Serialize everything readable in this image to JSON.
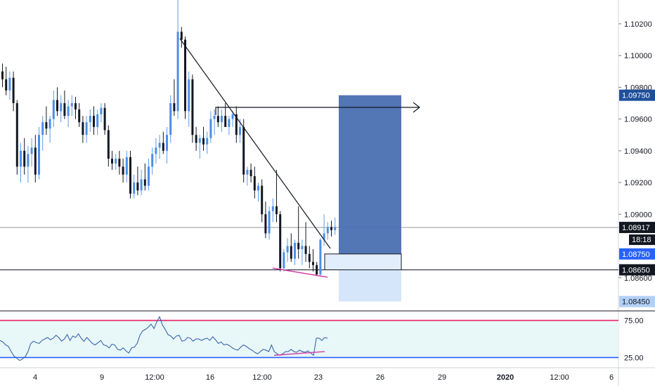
{
  "chart_data": [
    {
      "type": "candlestick",
      "series": [
        {
          "name": "",
          "values": []
        }
      ],
      "ylim": [
        1.084,
        1.1035
      ],
      "y_ticks": [
        "1.10200",
        "1.10000",
        "1.09800",
        "1.09600",
        "1.09400",
        "1.09200",
        "1.09000",
        "1.08600"
      ],
      "x_ticks": [
        "4",
        "9",
        "12:00",
        "16",
        "12:00",
        "23",
        "26",
        "29",
        "2020",
        "12:00",
        "6"
      ],
      "candles": [
        [
          1.099,
          1.0995,
          1.098,
          1.0985
        ],
        [
          1.0985,
          1.0993,
          1.0975,
          1.0978
        ],
        [
          1.0978,
          1.099,
          1.0972,
          1.0986
        ],
        [
          1.0986,
          1.099,
          1.0965,
          1.097
        ],
        [
          1.097,
          1.0972,
          1.0925,
          1.093
        ],
        [
          1.093,
          1.0945,
          1.092,
          1.094
        ],
        [
          1.094,
          1.0948,
          1.0925,
          1.093
        ],
        [
          1.093,
          1.0943,
          1.092,
          1.0938
        ],
        [
          1.0938,
          1.0948,
          1.093,
          1.0942
        ],
        [
          1.0942,
          1.095,
          1.092,
          1.0925
        ],
        [
          1.0925,
          1.0955,
          1.0922,
          1.095
        ],
        [
          1.095,
          1.0962,
          1.094,
          1.0958
        ],
        [
          1.0958,
          1.0968,
          1.095,
          1.0954
        ],
        [
          1.0954,
          1.0962,
          1.0945,
          1.096
        ],
        [
          1.096,
          1.0978,
          1.0955,
          1.0972
        ],
        [
          1.0972,
          1.098,
          1.0962,
          1.0965
        ],
        [
          1.0965,
          1.0975,
          1.0958,
          1.097
        ],
        [
          1.097,
          1.0978,
          1.096,
          1.0962
        ],
        [
          1.0962,
          1.0972,
          1.0955,
          1.0968
        ],
        [
          1.0968,
          1.0975,
          1.0962,
          1.097
        ],
        [
          1.097,
          1.0974,
          1.096,
          1.0966
        ],
        [
          1.0966,
          1.097,
          1.0955,
          1.0958
        ],
        [
          1.0958,
          1.0962,
          1.0945,
          1.095
        ],
        [
          1.095,
          1.0962,
          1.0945,
          1.0958
        ],
        [
          1.0958,
          1.0966,
          1.0952,
          1.0962
        ],
        [
          1.0962,
          1.0968,
          1.095,
          1.0955
        ],
        [
          1.0955,
          1.0966,
          1.095,
          1.0963
        ],
        [
          1.0963,
          1.097,
          1.0958,
          1.0967
        ],
        [
          1.0967,
          1.097,
          1.095,
          1.0953
        ],
        [
          1.0953,
          1.0956,
          1.093,
          1.0935
        ],
        [
          1.0935,
          1.094,
          1.0928,
          1.0932
        ],
        [
          1.0932,
          1.0938,
          1.0928,
          1.0935
        ],
        [
          1.0935,
          1.094,
          1.0925,
          1.093
        ],
        [
          1.093,
          1.0935,
          1.092,
          1.0925
        ],
        [
          1.0925,
          1.094,
          1.092,
          1.0936
        ],
        [
          1.0936,
          1.094,
          1.091,
          1.0913
        ],
        [
          1.0913,
          1.0925,
          1.091,
          1.092
        ],
        [
          1.092,
          1.093,
          1.0912,
          1.0915
        ],
        [
          1.0915,
          1.0928,
          1.0912,
          1.0922
        ],
        [
          1.0922,
          1.0932,
          1.0915,
          1.0918
        ],
        [
          1.0918,
          1.0935,
          1.0915,
          1.093
        ],
        [
          1.093,
          1.0942,
          1.0925,
          1.0938
        ],
        [
          1.0938,
          1.0948,
          1.0932,
          1.0942
        ],
        [
          1.0942,
          1.095,
          1.0935,
          1.0945
        ],
        [
          1.0945,
          1.0952,
          1.0938,
          1.094
        ],
        [
          1.094,
          1.0955,
          1.0932,
          1.095
        ],
        [
          1.095,
          1.0975,
          1.0945,
          1.097
        ],
        [
          1.097,
          1.0985,
          1.0962,
          1.0965
        ],
        [
          1.0965,
          1.1035,
          1.096,
          1.1015
        ],
        [
          1.1015,
          1.1018,
          1.1005,
          1.101
        ],
        [
          1.101,
          1.1012,
          1.096,
          1.0965
        ],
        [
          1.0965,
          1.099,
          1.0955,
          1.0985
        ],
        [
          1.0985,
          1.0988,
          1.0945,
          1.095
        ],
        [
          1.095,
          1.0955,
          1.094,
          1.0945
        ],
        [
          1.0945,
          1.095,
          1.0935,
          1.0948
        ],
        [
          1.0948,
          1.0955,
          1.094,
          1.0944
        ],
        [
          1.0944,
          1.0952,
          1.0938,
          1.0948
        ],
        [
          1.0948,
          1.0965,
          1.0945,
          1.096
        ],
        [
          1.096,
          1.0966,
          1.095,
          1.0962
        ],
        [
          1.0962,
          1.0968,
          1.0955,
          1.0958
        ],
        [
          1.0958,
          1.0966,
          1.0952,
          1.0962
        ],
        [
          1.0962,
          1.097,
          1.0955,
          1.0955
        ],
        [
          1.0955,
          1.0962,
          1.095,
          1.096
        ],
        [
          1.096,
          1.0965,
          1.0955,
          1.0963
        ],
        [
          1.0963,
          1.0968,
          1.0945,
          1.095
        ],
        [
          1.095,
          1.096,
          1.0945,
          1.0955
        ],
        [
          1.0955,
          1.096,
          1.092,
          1.0925
        ],
        [
          1.0925,
          1.093,
          1.0918,
          1.0928
        ],
        [
          1.0928,
          1.0932,
          1.092,
          1.0924
        ],
        [
          1.0924,
          1.093,
          1.091,
          1.0915
        ],
        [
          1.0915,
          1.092,
          1.0908,
          1.0918
        ],
        [
          1.0918,
          1.0922,
          1.0895,
          1.09
        ],
        [
          1.09,
          1.0908,
          1.0885,
          1.0888
        ],
        [
          1.0888,
          1.0905,
          1.0884,
          1.0902
        ],
        [
          1.0902,
          1.091,
          1.0895,
          1.0905
        ],
        [
          1.0905,
          1.0928,
          1.0895,
          1.09
        ],
        [
          1.09,
          1.0902,
          1.0864,
          1.0866
        ],
        [
          1.0866,
          1.0878,
          1.0864,
          1.0876
        ],
        [
          1.0876,
          1.0885,
          1.087,
          1.088
        ],
        [
          1.088,
          1.0888,
          1.087,
          1.0872
        ],
        [
          1.0872,
          1.0884,
          1.0868,
          1.0882
        ],
        [
          1.0882,
          1.0905,
          1.0872,
          1.0878
        ],
        [
          1.0878,
          1.0884,
          1.0868,
          1.088
        ],
        [
          1.088,
          1.0895,
          1.087,
          1.0875
        ],
        [
          1.0875,
          1.088,
          1.0866,
          1.087
        ],
        [
          1.087,
          1.0878,
          1.0864,
          1.0868
        ],
        [
          1.0868,
          1.087,
          1.0861,
          1.0862
        ],
        [
          1.0862,
          1.0885,
          1.0861,
          1.0884
        ],
        [
          1.0884,
          1.09,
          1.088,
          1.0888
        ],
        [
          1.0888,
          1.0895,
          1.0884,
          1.0892
        ],
        [
          1.0892,
          1.0896,
          1.0886,
          1.089
        ],
        [
          1.089,
          1.0898,
          1.0887,
          1.0892
        ]
      ],
      "annotations": {
        "entry": 1.0875,
        "stop": 1.0865,
        "target": 1.0975,
        "lower_zone": 1.0845,
        "last_price": 1.08917,
        "countdown": "18:18",
        "tags": [
          "1.09750",
          "1.08917",
          "1.08750",
          "1.08650",
          "1.08450"
        ]
      }
    },
    {
      "type": "line",
      "series": [
        {
          "name": "",
          "values": [
            48,
            46,
            42,
            40,
            33,
            27,
            24,
            21,
            23,
            26,
            33,
            44,
            47,
            45,
            44,
            48,
            50,
            52,
            49,
            51,
            55,
            52,
            47,
            50,
            56,
            48,
            54,
            52,
            57,
            51,
            47,
            52,
            48,
            44,
            42,
            45,
            48,
            42,
            41,
            38,
            43,
            42,
            36,
            35,
            38,
            34,
            31,
            38,
            39,
            44,
            55,
            61,
            63,
            66,
            70,
            64,
            73,
            80,
            69,
            63,
            56,
            54,
            50,
            54,
            55,
            47,
            48,
            52,
            51,
            47,
            50,
            50,
            48,
            50,
            51,
            48,
            53,
            49,
            44,
            46,
            42,
            43,
            41,
            38,
            36,
            35,
            39,
            42,
            40,
            37,
            35,
            32,
            30,
            33,
            36,
            35,
            33,
            42,
            33,
            30,
            28,
            30,
            33,
            33,
            36,
            33,
            32,
            35,
            33,
            32,
            34,
            31,
            28,
            51,
            51,
            48,
            52,
            51
          ]
        }
      ],
      "ylim": [
        15,
        85
      ],
      "y_ticks": [
        "75.00",
        "25.00"
      ]
    }
  ]
}
